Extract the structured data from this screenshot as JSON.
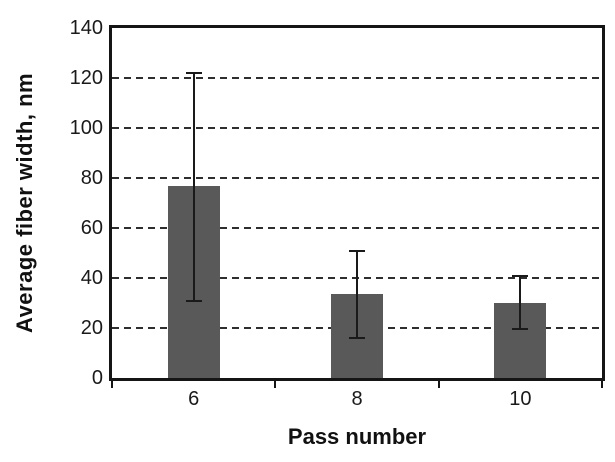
{
  "chart_data": {
    "type": "bar",
    "title": "",
    "categories": [
      "6",
      "8",
      "10"
    ],
    "values": [
      77,
      33.5,
      30
    ],
    "error_low": [
      31,
      16,
      19.5
    ],
    "error_high": [
      122,
      51,
      41
    ],
    "xlabel": "Pass number",
    "ylabel": "Average fiber width, nm",
    "ylim": [
      0,
      140
    ],
    "yticks": [
      0,
      20,
      40,
      60,
      80,
      100,
      120,
      140
    ],
    "grid": "horizontal-dashed",
    "legend": "none",
    "bar_color": "#595959",
    "error_bar_color": "#1a1a1a",
    "frame_color": "#151515",
    "background_color": "#ffffff"
  }
}
